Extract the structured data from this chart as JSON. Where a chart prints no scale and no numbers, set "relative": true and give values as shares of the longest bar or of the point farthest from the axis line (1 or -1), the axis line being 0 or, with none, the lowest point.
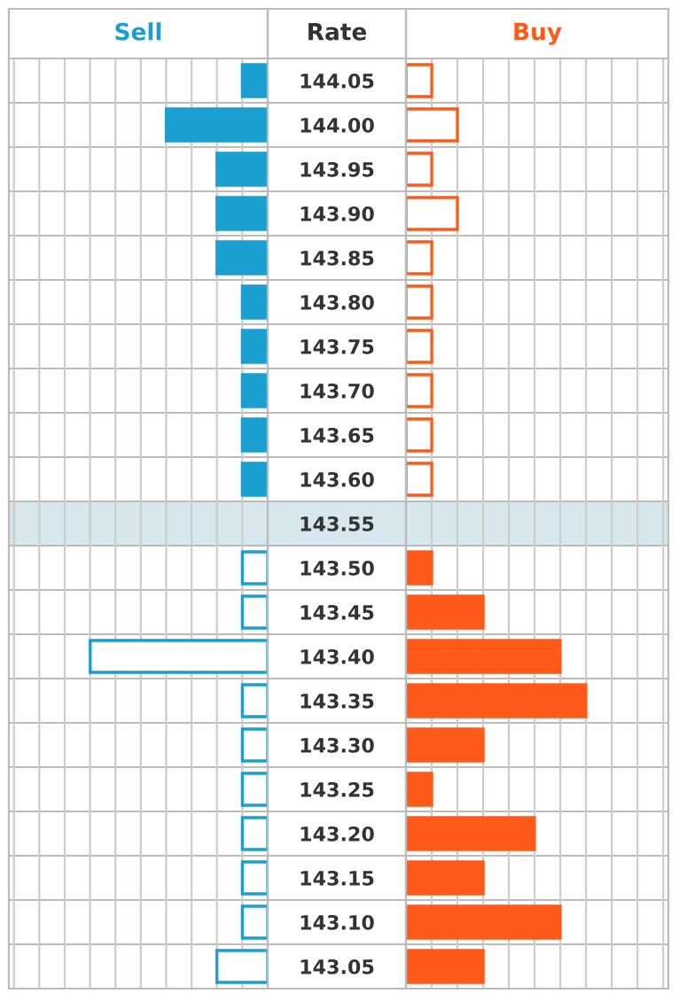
{
  "chart_data": [
    {
      "type": "bar",
      "orientation": "horizontal",
      "relative": true,
      "title": "Sell",
      "ylabel": "Rate",
      "legend": false,
      "grid": true,
      "tick_labels": "y",
      "color": "#1a9fd0",
      "categories": [
        "144.05",
        "144.00",
        "143.95",
        "143.90",
        "143.85",
        "143.80",
        "143.75",
        "143.70",
        "143.65",
        "143.60",
        "143.55",
        "143.50",
        "143.45",
        "143.40",
        "143.35",
        "143.30",
        "143.25",
        "143.20",
        "143.15",
        "143.10",
        "143.05"
      ],
      "bands": [
        {
          "axis": "y",
          "from": "143.55",
          "to": "143.55",
          "color": "#d6e8ee"
        }
      ],
      "values": [
        0.143,
        0.571,
        0.286,
        0.286,
        0.286,
        0.143,
        0.143,
        0.143,
        0.143,
        0.143,
        0,
        0.143,
        0.143,
        1,
        0.143,
        0.143,
        0.143,
        0.143,
        0.143,
        0.143,
        0.286
      ],
      "colors": [
        "#1a9fd0",
        "#1a9fd0",
        "#1a9fd0",
        "#1a9fd0",
        "#1a9fd0",
        "#1a9fd0",
        "#1a9fd0",
        "#1a9fd0",
        "#1a9fd0",
        "#1a9fd0",
        "#1a9fd0",
        "#ffffff",
        "#ffffff",
        "#ffffff",
        "#ffffff",
        "#ffffff",
        "#ffffff",
        "#ffffff",
        "#ffffff",
        "#ffffff",
        "#ffffff"
      ]
    },
    {
      "type": "bar",
      "orientation": "horizontal",
      "relative": true,
      "title": "Buy",
      "legend": false,
      "grid": true,
      "tick_labels": false,
      "color": "#ff5a1a",
      "categories": [
        "144.05",
        "144.00",
        "143.95",
        "143.90",
        "143.85",
        "143.80",
        "143.75",
        "143.70",
        "143.65",
        "143.60",
        "143.55",
        "143.50",
        "143.45",
        "143.40",
        "143.35",
        "143.30",
        "143.25",
        "143.20",
        "143.15",
        "143.10",
        "143.05"
      ],
      "bands": [
        {
          "axis": "y",
          "from": "143.55",
          "to": "143.55",
          "color": "#d6e8ee"
        }
      ],
      "values": [
        0.143,
        0.286,
        0.143,
        0.286,
        0.143,
        0.143,
        0.143,
        0.143,
        0.143,
        0.143,
        0,
        0.143,
        0.429,
        0.857,
        1,
        0.429,
        0.143,
        0.714,
        0.429,
        0.857,
        0.429
      ],
      "colors": [
        "#ffffff",
        "#ffffff",
        "#ffffff",
        "#ffffff",
        "#ffffff",
        "#ffffff",
        "#ffffff",
        "#ffffff",
        "#ffffff",
        "#ffffff",
        "#ffffff",
        "#ff5a1a",
        "#ff5a1a",
        "#ff5a1a",
        "#ff5a1a",
        "#ff5a1a",
        "#ff5a1a",
        "#ff5a1a",
        "#ff5a1a",
        "#ff5a1a",
        "#ff5a1a"
      ]
    }
  ]
}
